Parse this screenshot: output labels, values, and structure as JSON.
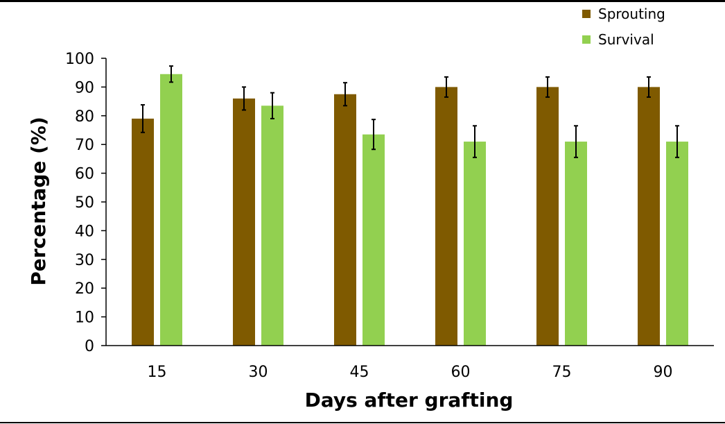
{
  "chart_data": {
    "type": "bar",
    "title": "",
    "xlabel": "Days after grafting",
    "ylabel": "Percentage (%)",
    "categories": [
      "15",
      "30",
      "45",
      "60",
      "75",
      "90"
    ],
    "ylim": [
      0,
      100
    ],
    "yticks": [
      0,
      10,
      20,
      30,
      40,
      50,
      60,
      70,
      80,
      90,
      100
    ],
    "legend_position": "top-right",
    "series": [
      {
        "name": "Sprouting",
        "color": "#7f5a00",
        "values": [
          79,
          86,
          87.5,
          90,
          90,
          90
        ],
        "errors": [
          4.8,
          4,
          4,
          3.5,
          3.5,
          3.5
        ]
      },
      {
        "name": "Survival",
        "color": "#92d050",
        "values": [
          94.5,
          83.5,
          73.5,
          71,
          71,
          71
        ],
        "errors": [
          2.8,
          4.5,
          5.2,
          5.5,
          5.5,
          5.5
        ]
      }
    ]
  }
}
